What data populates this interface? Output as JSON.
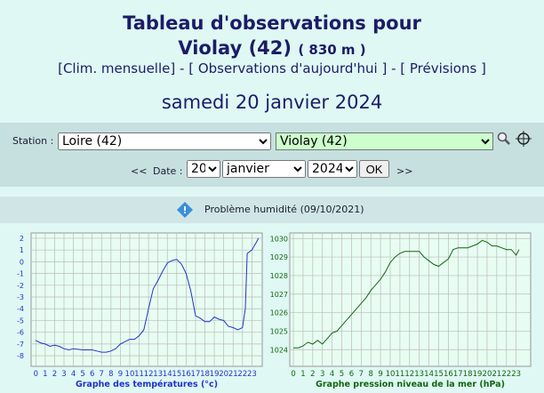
{
  "header": {
    "title": "Tableau d'observations pour",
    "station": "Violay (42)",
    "altitude": "( 830 m )",
    "nav": [
      "[Clim. mensuelle]",
      "[ Observations d'aujourd'hui ]",
      "[ Prévisions ]"
    ],
    "nav_separator": "-",
    "date": "samedi 20 janvier 2024"
  },
  "form": {
    "station_label": "Station :",
    "department": "Loire (42)",
    "station": "Violay (42)",
    "prev": "<<",
    "date_label": "Date :",
    "day": "20",
    "month": "janvier",
    "year": "2024",
    "submit": "OK",
    "next": ">>"
  },
  "notice": "Problème humidité (09/10/2021)",
  "chart_data": [
    {
      "type": "line",
      "x_label": "Graphe des températures (°c)",
      "color": "#2233cc",
      "grid": true,
      "x": [
        0,
        0.5,
        1,
        1.5,
        2,
        2.5,
        3,
        3.5,
        4,
        5,
        6,
        6.5,
        7,
        7.5,
        8,
        8.5,
        9,
        9.5,
        10,
        10.5,
        11,
        11.5,
        12,
        12.5,
        13,
        13.5,
        14,
        14.5,
        15,
        15.5,
        16,
        16.5,
        17,
        17.5,
        18,
        18.5,
        19,
        19.5,
        20,
        20.5,
        21,
        21.5,
        22,
        22.3,
        22.5,
        23,
        23.5,
        23.7
      ],
      "values": [
        -6.7,
        -6.9,
        -7.0,
        -7.2,
        -7.1,
        -7.2,
        -7.4,
        -7.5,
        -7.4,
        -7.5,
        -7.5,
        -7.6,
        -7.7,
        -7.7,
        -7.6,
        -7.4,
        -7.0,
        -6.8,
        -6.6,
        -6.6,
        -6.3,
        -5.8,
        -4.0,
        -2.3,
        -1.6,
        -0.8,
        -0.1,
        0.1,
        0.2,
        -0.2,
        -1.0,
        -2.5,
        -4.6,
        -4.8,
        -5.1,
        -5.1,
        -4.7,
        -4.9,
        -5.0,
        -5.5,
        -5.6,
        -5.8,
        -5.6,
        -4.0,
        0.7,
        1.0,
        1.7,
        2.0
      ],
      "xlim": [
        -0.5,
        24.1
      ],
      "ylim": [
        -8.9,
        2.45
      ],
      "xticks": [
        0,
        1,
        2,
        3,
        4,
        5,
        6,
        7,
        8,
        9,
        10,
        11,
        12,
        13,
        14,
        15,
        16,
        17,
        18,
        19,
        20,
        21,
        22,
        23
      ],
      "yticks": [
        2,
        1,
        0,
        -1,
        -2,
        -3,
        -4,
        -5,
        -6,
        -7,
        -8
      ]
    },
    {
      "type": "line",
      "x_label": "Graphe pression niveau de la mer (hPa)",
      "color": "#116611",
      "grid": true,
      "x": [
        0,
        0.5,
        1,
        1.5,
        2,
        2.5,
        3,
        3.5,
        4,
        4.5,
        5,
        5.5,
        6,
        6.5,
        7,
        7.5,
        8,
        8.5,
        9,
        9.5,
        10,
        10.5,
        11,
        11.5,
        12,
        12.5,
        13,
        13.5,
        14,
        14.5,
        15,
        15.5,
        16,
        16.5,
        17,
        17.5,
        18,
        18.5,
        19,
        19.5,
        20,
        20.5,
        21,
        21.5,
        22,
        22.5,
        23,
        23.3
      ],
      "values": [
        1024.1,
        1024.1,
        1024.2,
        1024.4,
        1024.3,
        1024.5,
        1024.3,
        1024.6,
        1024.9,
        1025.0,
        1025.3,
        1025.6,
        1025.9,
        1026.2,
        1026.5,
        1026.8,
        1027.2,
        1027.5,
        1027.8,
        1028.2,
        1028.7,
        1029.0,
        1029.2,
        1029.3,
        1029.3,
        1029.3,
        1029.3,
        1029.0,
        1028.8,
        1028.6,
        1028.5,
        1028.7,
        1028.9,
        1029.4,
        1029.5,
        1029.5,
        1029.5,
        1029.6,
        1029.7,
        1029.9,
        1029.8,
        1029.6,
        1029.6,
        1029.5,
        1029.4,
        1029.4,
        1029.1,
        1029.4
      ],
      "xlim": [
        -0.37,
        24.5
      ],
      "ylim": [
        1023.1,
        1030.3
      ],
      "xticks": [
        0,
        1,
        2,
        3,
        4,
        5,
        6,
        7,
        8,
        9,
        10,
        11,
        12,
        13,
        14,
        15,
        16,
        17,
        18,
        19,
        20,
        21,
        22,
        23
      ],
      "yticks": [
        1030,
        1029,
        1028,
        1027,
        1026,
        1025,
        1024
      ]
    }
  ]
}
